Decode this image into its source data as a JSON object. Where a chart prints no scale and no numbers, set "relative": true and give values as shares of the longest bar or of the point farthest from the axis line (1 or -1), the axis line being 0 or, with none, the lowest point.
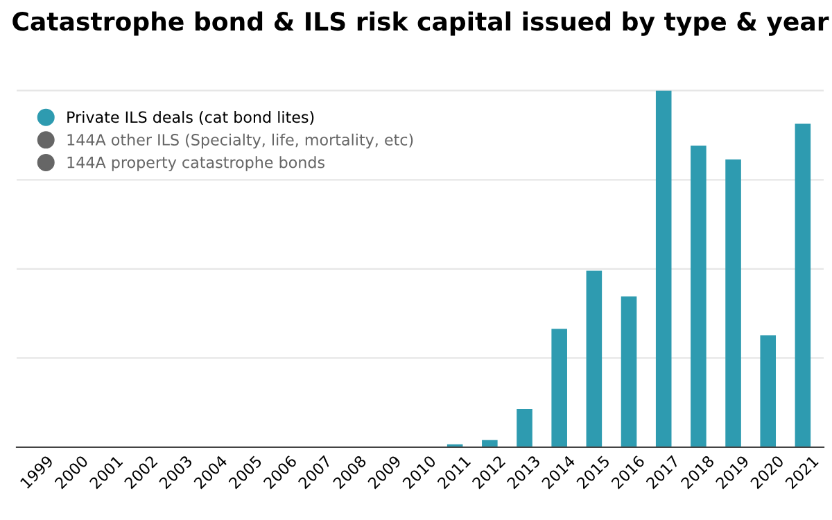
{
  "chart_data": {
    "type": "bar",
    "title": "Catastrophe bond & ILS risk capital issued by type & year",
    "categories": [
      "1999",
      "2000",
      "2001",
      "2002",
      "2003",
      "2004",
      "2005",
      "2006",
      "2007",
      "2008",
      "2009",
      "2010",
      "2011",
      "2012",
      "2013",
      "2014",
      "2015",
      "2016",
      "2017",
      "2018",
      "2019",
      "2020",
      "2021"
    ],
    "series": [
      {
        "name": "Private ILS deals (cat bond lites)",
        "color": "#2e9bb0",
        "values": [
          null,
          null,
          null,
          null,
          null,
          null,
          null,
          null,
          null,
          null,
          null,
          null,
          0.008,
          0.02,
          0.107,
          0.332,
          0.495,
          0.423,
          1,
          0.846,
          0.807,
          0.314,
          0.907
        ]
      },
      {
        "name": "144A other ILS (Specialty, life, mortality, etc)",
        "color": "#666666",
        "values": [
          null,
          null,
          null,
          null,
          null,
          null,
          null,
          null,
          null,
          null,
          null,
          null,
          null,
          null,
          null,
          null,
          null,
          null,
          null,
          null,
          null,
          null,
          null
        ]
      },
      {
        "name": "144A property catastrophe bonds",
        "color": "#666666",
        "values": [
          null,
          null,
          null,
          null,
          null,
          null,
          null,
          null,
          null,
          null,
          null,
          null,
          null,
          null,
          null,
          null,
          null,
          null,
          null,
          null,
          null,
          null,
          null
        ]
      }
    ],
    "relative": true,
    "grid": "y",
    "legend": "top left"
  }
}
